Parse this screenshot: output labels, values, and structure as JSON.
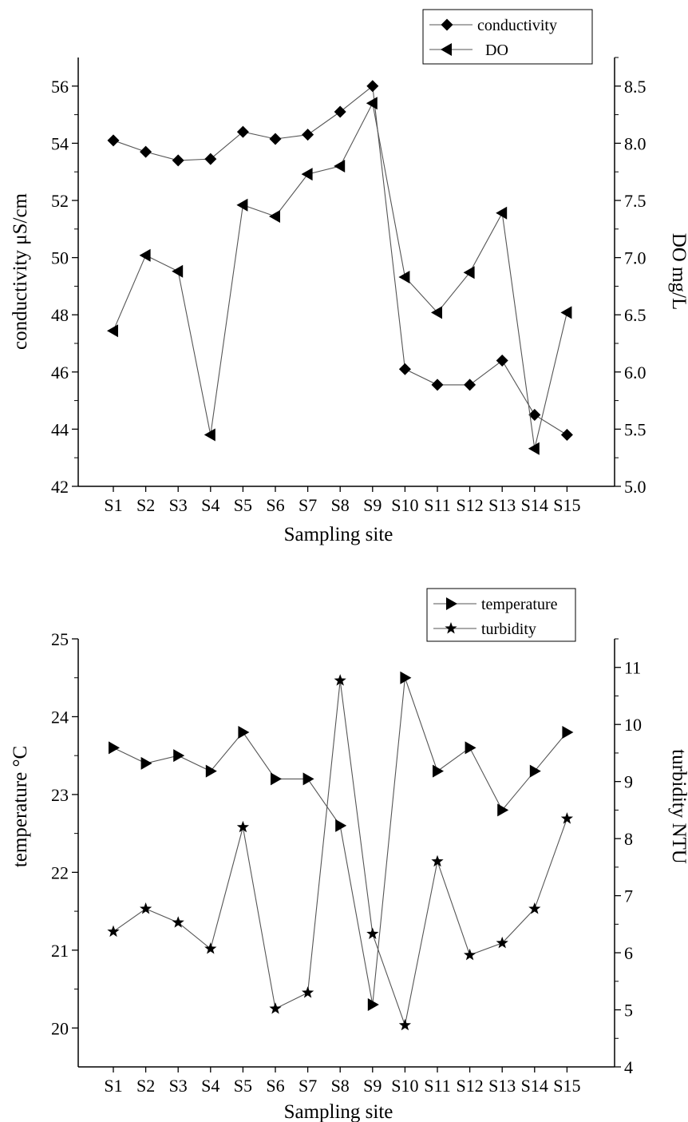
{
  "chart_data": [
    {
      "type": "line",
      "categories": [
        "S1",
        "S2",
        "S3",
        "S4",
        "S5",
        "S6",
        "S7",
        "S8",
        "S9",
        "S10",
        "S11",
        "S12",
        "S13",
        "S14",
        "S15"
      ],
      "xlabel": "Sampling site",
      "left_axis": {
        "label": "conductivity μS/cm",
        "ylim": [
          42,
          57
        ],
        "ticks": [
          "42",
          "44",
          "46",
          "48",
          "50",
          "52",
          "54",
          "56"
        ]
      },
      "right_axis": {
        "label": "DO mg/L",
        "ylim": [
          5.0,
          8.75
        ],
        "ticks": [
          "5.0",
          "5.5",
          "6.0",
          "6.5",
          "7.0",
          "7.5",
          "8.0",
          "8.5"
        ]
      },
      "series": [
        {
          "name": "conductivity",
          "axis": "left",
          "marker": "diamond",
          "values": [
            54.1,
            53.7,
            53.4,
            53.45,
            54.4,
            54.15,
            54.3,
            55.1,
            56.0,
            46.1,
            45.55,
            45.55,
            46.4,
            44.5,
            43.8
          ]
        },
        {
          "name": "DO",
          "axis": "right",
          "marker": "triangle-left",
          "values": [
            6.36,
            7.02,
            6.88,
            5.45,
            7.46,
            7.36,
            7.73,
            7.8,
            8.35,
            6.83,
            6.52,
            6.87,
            7.39,
            5.33,
            6.52
          ]
        }
      ],
      "legend": "top-right",
      "grid": false
    },
    {
      "type": "line",
      "categories": [
        "S1",
        "S2",
        "S3",
        "S4",
        "S5",
        "S6",
        "S7",
        "S8",
        "S9",
        "S10",
        "S11",
        "S12",
        "S13",
        "S14",
        "S15"
      ],
      "xlabel": "Sampling site",
      "left_axis": {
        "label": "temperature °C",
        "ylim": [
          19.5,
          25
        ],
        "ticks": [
          "20",
          "21",
          "22",
          "23",
          "24",
          "25"
        ]
      },
      "right_axis": {
        "label": "turbidity NTU",
        "ylim": [
          4,
          11.5
        ],
        "ticks": [
          "4",
          "5",
          "6",
          "7",
          "8",
          "9",
          "10",
          "11"
        ]
      },
      "series": [
        {
          "name": "temperature",
          "axis": "left",
          "marker": "triangle-right",
          "values": [
            23.6,
            23.4,
            23.5,
            23.3,
            23.8,
            23.2,
            23.2,
            22.6,
            20.3,
            24.5,
            23.3,
            23.6,
            22.8,
            23.3,
            23.8
          ]
        },
        {
          "name": "turbidity",
          "axis": "right",
          "marker": "star",
          "values": [
            6.37,
            6.77,
            6.53,
            6.07,
            8.2,
            5.02,
            5.3,
            10.77,
            6.33,
            4.73,
            7.6,
            5.96,
            6.17,
            6.77,
            8.35
          ]
        }
      ],
      "legend": "top-right",
      "grid": false
    }
  ]
}
